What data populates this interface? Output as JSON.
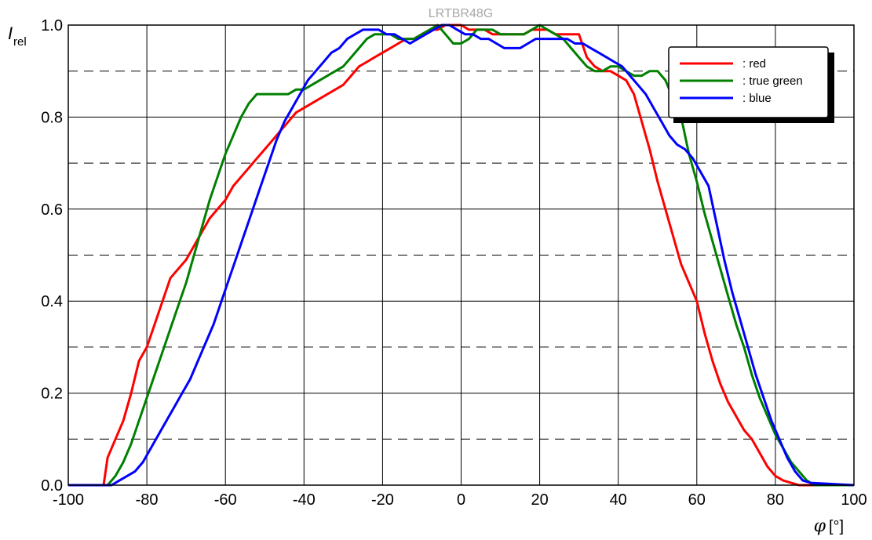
{
  "chart_data": {
    "type": "line",
    "title": "LRTBR48G",
    "ylabel": "I",
    "ylabel_sub": "rel",
    "xlabel_symbol": "φ",
    "xlabel_unit": "[°]",
    "xlim": [
      -100,
      100
    ],
    "ylim": [
      0,
      1
    ],
    "xticks": [
      -100,
      -80,
      -60,
      -40,
      -20,
      0,
      20,
      40,
      60,
      80,
      100
    ],
    "yticks": [
      0.0,
      0.2,
      0.4,
      0.6,
      0.8,
      1.0
    ],
    "ytick_labels": [
      "0.0",
      "0.2",
      "0.4",
      "0.6",
      "0.8",
      "1.0"
    ],
    "minor_y_dashed": [
      0.1,
      0.3,
      0.5,
      0.7,
      0.9
    ],
    "grid": true,
    "legend_position": "top-right",
    "series": [
      {
        "name": ": red",
        "color": "#ff0000",
        "x": [
          -100,
          -91,
          -90,
          -88,
          -86,
          -84,
          -82,
          -80,
          -78,
          -76,
          -74,
          -72,
          -70,
          -68,
          -66,
          -64,
          -62,
          -60,
          -58,
          -56,
          -54,
          -52,
          -50,
          -48,
          -46,
          -44,
          -42,
          -40,
          -38,
          -36,
          -34,
          -32,
          -30,
          -28,
          -26,
          -24,
          -22,
          -20,
          -18,
          -16,
          -14,
          -12,
          -10,
          -8,
          -6,
          -4,
          -2,
          0,
          2,
          4,
          6,
          8,
          10,
          12,
          14,
          16,
          18,
          20,
          22,
          24,
          26,
          28,
          30,
          32,
          34,
          36,
          38,
          40,
          42,
          44,
          46,
          48,
          50,
          52,
          54,
          56,
          58,
          60,
          62,
          64,
          66,
          68,
          70,
          72,
          74,
          76,
          78,
          80,
          82,
          84,
          86,
          88,
          90,
          91,
          92,
          100
        ],
        "y": [
          0,
          0,
          0.06,
          0.1,
          0.14,
          0.2,
          0.27,
          0.3,
          0.35,
          0.4,
          0.45,
          0.47,
          0.49,
          0.52,
          0.55,
          0.58,
          0.6,
          0.62,
          0.65,
          0.67,
          0.69,
          0.71,
          0.73,
          0.75,
          0.77,
          0.79,
          0.81,
          0.82,
          0.83,
          0.84,
          0.85,
          0.86,
          0.87,
          0.89,
          0.91,
          0.92,
          0.93,
          0.94,
          0.95,
          0.96,
          0.97,
          0.97,
          0.98,
          0.99,
          0.99,
          1.0,
          1.0,
          1.0,
          0.99,
          0.99,
          0.99,
          0.98,
          0.98,
          0.98,
          0.98,
          0.98,
          0.99,
          0.99,
          0.99,
          0.98,
          0.98,
          0.98,
          0.98,
          0.93,
          0.91,
          0.9,
          0.9,
          0.89,
          0.88,
          0.85,
          0.79,
          0.73,
          0.66,
          0.6,
          0.54,
          0.48,
          0.44,
          0.4,
          0.33,
          0.27,
          0.22,
          0.18,
          0.15,
          0.12,
          0.1,
          0.07,
          0.04,
          0.02,
          0.01,
          0.005,
          0.0,
          0,
          0,
          0,
          0,
          0
        ]
      },
      {
        "name": ": true green",
        "color": "#008000",
        "x": [
          -100,
          -90,
          -88,
          -86,
          -84,
          -82,
          -80,
          -78,
          -76,
          -74,
          -72,
          -70,
          -68,
          -66,
          -64,
          -62,
          -60,
          -58,
          -56,
          -54,
          -52,
          -50,
          -48,
          -46,
          -44,
          -42,
          -40,
          -38,
          -36,
          -34,
          -32,
          -30,
          -28,
          -26,
          -24,
          -22,
          -20,
          -18,
          -16,
          -14,
          -12,
          -10,
          -8,
          -6,
          -4,
          -2,
          0,
          2,
          4,
          6,
          8,
          10,
          12,
          14,
          16,
          18,
          20,
          22,
          24,
          26,
          28,
          30,
          32,
          34,
          36,
          38,
          40,
          42,
          44,
          46,
          48,
          50,
          52,
          54,
          56,
          58,
          60,
          62,
          64,
          66,
          68,
          70,
          72,
          74,
          76,
          78,
          80,
          82,
          84,
          86,
          88,
          90,
          100
        ],
        "y": [
          0,
          0,
          0.02,
          0.05,
          0.09,
          0.14,
          0.19,
          0.24,
          0.29,
          0.34,
          0.39,
          0.44,
          0.5,
          0.56,
          0.62,
          0.67,
          0.72,
          0.76,
          0.8,
          0.83,
          0.85,
          0.85,
          0.85,
          0.85,
          0.85,
          0.86,
          0.86,
          0.87,
          0.88,
          0.89,
          0.9,
          0.91,
          0.93,
          0.95,
          0.97,
          0.98,
          0.98,
          0.98,
          0.97,
          0.97,
          0.97,
          0.98,
          0.99,
          1.0,
          0.98,
          0.96,
          0.96,
          0.97,
          0.99,
          0.99,
          0.99,
          0.98,
          0.98,
          0.98,
          0.98,
          0.99,
          1.0,
          0.99,
          0.98,
          0.97,
          0.95,
          0.93,
          0.91,
          0.9,
          0.9,
          0.91,
          0.91,
          0.9,
          0.89,
          0.89,
          0.9,
          0.9,
          0.88,
          0.84,
          0.8,
          0.72,
          0.66,
          0.59,
          0.53,
          0.47,
          0.41,
          0.35,
          0.3,
          0.24,
          0.19,
          0.15,
          0.11,
          0.08,
          0.05,
          0.03,
          0.01,
          0,
          0
        ]
      },
      {
        "name": ": blue",
        "color": "#0000ff",
        "x": [
          -100,
          -89,
          -87,
          -85,
          -83,
          -81,
          -79,
          -77,
          -75,
          -73,
          -71,
          -69,
          -67,
          -65,
          -63,
          -61,
          -59,
          -57,
          -55,
          -53,
          -51,
          -49,
          -47,
          -45,
          -43,
          -41,
          -39,
          -37,
          -35,
          -33,
          -31,
          -29,
          -27,
          -25,
          -23,
          -21,
          -19,
          -17,
          -15,
          -13,
          -11,
          -9,
          -7,
          -5,
          -3,
          -1,
          1,
          3,
          5,
          7,
          9,
          11,
          13,
          15,
          17,
          19,
          21,
          23,
          25,
          27,
          29,
          31,
          33,
          35,
          37,
          39,
          41,
          43,
          45,
          47,
          49,
          51,
          53,
          55,
          57,
          59,
          61,
          63,
          65,
          67,
          69,
          71,
          73,
          75,
          77,
          79,
          81,
          83,
          85,
          87,
          89,
          100
        ],
        "y": [
          0,
          0,
          0.01,
          0.02,
          0.03,
          0.05,
          0.08,
          0.11,
          0.14,
          0.17,
          0.2,
          0.23,
          0.27,
          0.31,
          0.35,
          0.4,
          0.45,
          0.5,
          0.55,
          0.6,
          0.65,
          0.7,
          0.75,
          0.79,
          0.82,
          0.85,
          0.88,
          0.9,
          0.92,
          0.94,
          0.95,
          0.97,
          0.98,
          0.99,
          0.99,
          0.99,
          0.98,
          0.98,
          0.97,
          0.96,
          0.97,
          0.98,
          0.99,
          1.0,
          1.0,
          0.99,
          0.98,
          0.98,
          0.97,
          0.97,
          0.96,
          0.95,
          0.95,
          0.95,
          0.96,
          0.97,
          0.97,
          0.97,
          0.97,
          0.97,
          0.96,
          0.96,
          0.95,
          0.94,
          0.93,
          0.92,
          0.91,
          0.89,
          0.87,
          0.85,
          0.82,
          0.79,
          0.76,
          0.74,
          0.73,
          0.71,
          0.68,
          0.65,
          0.57,
          0.49,
          0.42,
          0.36,
          0.3,
          0.24,
          0.19,
          0.14,
          0.1,
          0.06,
          0.03,
          0.01,
          0.005,
          0
        ]
      }
    ]
  }
}
